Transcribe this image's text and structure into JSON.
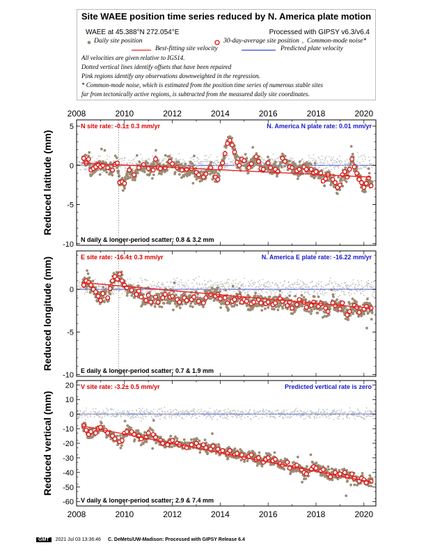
{
  "header": {
    "title": "Site WAEE position time series reduced by N. America plate motion",
    "station": "WAEE at 45.388°N 272.054°E",
    "processed": "Processed with GIPSY v6.3/v6.4",
    "legend": {
      "daily": "Daily site position",
      "avg": "30-day-average site position",
      "cm": "Common-mode noise*",
      "best": "Best-fitting site velocity",
      "pred": "Predicted plate velocity"
    },
    "notes": [
      "All velocities are given relative to IGS14.",
      "Dotted vertical lines identify offsets that have been repaired",
      "Pink regions identify any observations downweighted in the regression.",
      "* Common-mode noise, which is estimated from the position time series of numerous stable sites",
      "far from tectonically active regions, is subtracted from the measured daily site coordinates."
    ]
  },
  "colors": {
    "daily": "#9b8b74",
    "common_mode": "#c0c0c0",
    "average_stroke": "#e01010",
    "fit": "#ee2020",
    "plate": "#3344dd",
    "rate_text": "#dd0000",
    "plate_text": "#1a1acc"
  },
  "chart_data": [
    {
      "type": "scatter",
      "component": "N",
      "ylabel": "Reduced latitude (mm)",
      "xlim": [
        2008,
        2020.5
      ],
      "ylim": [
        -10.2,
        5.8
      ],
      "yticks": [
        5,
        0,
        -5,
        -10
      ],
      "xticks": [
        2008,
        2010,
        2012,
        2014,
        2016,
        2018,
        2020
      ],
      "x_tick_labels_top": [
        "2008",
        "2010",
        "2012",
        "2014",
        "2016",
        "2018",
        "2020"
      ],
      "offset_lines": [
        2009.75
      ],
      "site_rate": "N site rate:  -0.1± 0.3 mm/yr",
      "plate_rate": "N. America N plate rate: 0.01 mm/yr",
      "scatter": "N daily & longer-period scatter:   0.8 &   3.2 mm",
      "fit_line": [
        [
          2008.2,
          0.3
        ],
        [
          2020.3,
          -1.5
        ]
      ],
      "plate_line": [
        [
          2008,
          0.0
        ],
        [
          2020.5,
          0.0
        ]
      ],
      "averages": [
        [
          2008.3,
          0.9
        ],
        [
          2008.4,
          0.3
        ],
        [
          2008.5,
          0.8
        ],
        [
          2008.6,
          -0.6
        ],
        [
          2008.7,
          -0.4
        ],
        [
          2008.8,
          -0.2
        ],
        [
          2008.9,
          0.1
        ],
        [
          2009.0,
          -0.2
        ],
        [
          2009.1,
          0.0
        ],
        [
          2009.3,
          -0.3
        ],
        [
          2009.5,
          -0.6
        ],
        [
          2009.6,
          0.1
        ],
        [
          2009.7,
          0.3
        ],
        [
          2009.8,
          -2.2
        ],
        [
          2009.9,
          -2.1
        ],
        [
          2010.0,
          -2.3
        ],
        [
          2010.2,
          -0.6
        ],
        [
          2010.4,
          -1.2
        ],
        [
          2010.6,
          -0.3
        ],
        [
          2010.8,
          0.1
        ],
        [
          2011.0,
          -0.4
        ],
        [
          2011.2,
          -0.6
        ],
        [
          2011.3,
          0.8
        ],
        [
          2011.4,
          -0.2
        ],
        [
          2011.5,
          -0.4
        ],
        [
          2011.7,
          -0.3
        ],
        [
          2011.9,
          0.5
        ],
        [
          2012.0,
          0.2
        ],
        [
          2012.2,
          -0.3
        ],
        [
          2012.4,
          -0.6
        ],
        [
          2012.6,
          -0.5
        ],
        [
          2012.8,
          -0.4
        ],
        [
          2013.0,
          -0.9
        ],
        [
          2013.1,
          -1.2
        ],
        [
          2013.3,
          -1.5
        ],
        [
          2013.4,
          -1.1
        ],
        [
          2013.6,
          -0.3
        ],
        [
          2013.8,
          -1.5
        ],
        [
          2013.9,
          -1.8
        ],
        [
          2014.0,
          -0.3
        ],
        [
          2014.1,
          0.3
        ],
        [
          2014.2,
          1.5
        ],
        [
          2014.3,
          2.8
        ],
        [
          2014.4,
          3.2
        ],
        [
          2014.5,
          2.6
        ],
        [
          2014.6,
          1.7
        ],
        [
          2014.7,
          0.4
        ],
        [
          2014.8,
          0.0
        ],
        [
          2014.9,
          0.8
        ],
        [
          2015.0,
          0.6
        ],
        [
          2015.2,
          -0.3
        ],
        [
          2015.3,
          0.2
        ],
        [
          2015.5,
          1.1
        ],
        [
          2015.6,
          0.5
        ],
        [
          2015.7,
          -0.4
        ],
        [
          2015.8,
          -0.5
        ],
        [
          2016.0,
          0.3
        ],
        [
          2016.1,
          -0.3
        ],
        [
          2016.3,
          -0.5
        ],
        [
          2016.4,
          -0.8
        ],
        [
          2016.6,
          0.9
        ],
        [
          2016.7,
          0.5
        ],
        [
          2016.9,
          -0.2
        ],
        [
          2017.0,
          -0.3
        ],
        [
          2017.2,
          -0.7
        ],
        [
          2017.3,
          -0.5
        ],
        [
          2017.5,
          -0.2
        ],
        [
          2017.6,
          -0.5
        ],
        [
          2017.8,
          -0.5
        ],
        [
          2017.9,
          -1.0
        ],
        [
          2018.0,
          -0.8
        ],
        [
          2018.2,
          -1.0
        ],
        [
          2018.3,
          -2.0
        ],
        [
          2018.4,
          -1.7
        ],
        [
          2018.5,
          -1.2
        ],
        [
          2018.7,
          -1.8
        ],
        [
          2018.8,
          -2.2
        ],
        [
          2018.9,
          -2.8
        ],
        [
          2019.0,
          -2.5
        ],
        [
          2019.1,
          -1.2
        ],
        [
          2019.2,
          -0.8
        ],
        [
          2019.3,
          -1.5
        ],
        [
          2019.4,
          -0.5
        ],
        [
          2019.5,
          0.8
        ],
        [
          2019.6,
          -0.2
        ],
        [
          2019.7,
          -1.0
        ],
        [
          2019.8,
          -1.8
        ],
        [
          2019.9,
          -2.2
        ],
        [
          2020.0,
          -2.8
        ],
        [
          2020.1,
          -2.3
        ],
        [
          2020.2,
          -1.6
        ],
        [
          2020.3,
          -2.6
        ]
      ]
    },
    {
      "type": "scatter",
      "component": "E",
      "ylabel": "Reduced longitude (mm)",
      "xlim": [
        2008,
        2020.5
      ],
      "ylim": [
        -10.2,
        4.5
      ],
      "yticks": [
        0,
        -5,
        -10
      ],
      "xticks": [
        2008,
        2010,
        2012,
        2014,
        2016,
        2018,
        2020
      ],
      "offset_lines": [
        2009.75
      ],
      "site_rate": "E site rate: -16.4± 0.3 mm/yr",
      "plate_rate": "N. America E plate rate: -16.22 mm/yr",
      "scatter": "E daily & longer-period scatter:   0.7 &   1.9 mm",
      "fit_line": [
        [
          2008.2,
          0.8
        ],
        [
          2020.3,
          -2.2
        ]
      ],
      "plate_line": [
        [
          2008,
          0.0
        ],
        [
          2020.5,
          0.0
        ]
      ],
      "averages": [
        [
          2008.3,
          0.5
        ],
        [
          2008.4,
          1.0
        ],
        [
          2008.5,
          0.8
        ],
        [
          2008.6,
          0.5
        ],
        [
          2008.7,
          0.0
        ],
        [
          2008.8,
          -0.3
        ],
        [
          2008.9,
          -0.8
        ],
        [
          2009.0,
          -1.3
        ],
        [
          2009.1,
          -0.5
        ],
        [
          2009.3,
          -1.0
        ],
        [
          2009.4,
          0.1
        ],
        [
          2009.5,
          1.0
        ],
        [
          2009.6,
          1.5
        ],
        [
          2009.7,
          1.2
        ],
        [
          2009.8,
          1.8
        ],
        [
          2009.9,
          1.0
        ],
        [
          2010.0,
          0.5
        ],
        [
          2010.1,
          0.2
        ],
        [
          2010.3,
          -0.1
        ],
        [
          2010.5,
          -0.6
        ],
        [
          2010.6,
          -0.2
        ],
        [
          2010.7,
          -0.9
        ],
        [
          2010.9,
          -1.3
        ],
        [
          2011.0,
          -0.7
        ],
        [
          2011.1,
          -1.5
        ],
        [
          2011.3,
          -0.9
        ],
        [
          2011.4,
          -1.5
        ],
        [
          2011.6,
          -1.0
        ],
        [
          2011.7,
          -0.6
        ],
        [
          2011.9,
          -0.9
        ],
        [
          2012.0,
          -0.8
        ],
        [
          2012.2,
          -1.2
        ],
        [
          2012.3,
          -1.5
        ],
        [
          2012.5,
          -1.0
        ],
        [
          2012.6,
          -1.3
        ],
        [
          2012.8,
          -1.2
        ],
        [
          2012.9,
          -0.9
        ],
        [
          2013.1,
          -1.4
        ],
        [
          2013.3,
          -1.6
        ],
        [
          2013.4,
          -1.0
        ],
        [
          2013.6,
          -0.6
        ],
        [
          2013.8,
          -0.8
        ],
        [
          2013.9,
          -0.6
        ],
        [
          2014.0,
          -1.1
        ],
        [
          2014.2,
          -1.0
        ],
        [
          2014.3,
          -1.6
        ],
        [
          2014.5,
          -1.4
        ],
        [
          2014.6,
          -1.2
        ],
        [
          2014.8,
          -0.8
        ],
        [
          2014.9,
          -1.5
        ],
        [
          2015.0,
          -1.2
        ],
        [
          2015.1,
          -1.4
        ],
        [
          2015.3,
          -1.7
        ],
        [
          2015.4,
          -1.5
        ],
        [
          2015.6,
          -1.2
        ],
        [
          2015.7,
          -1.6
        ],
        [
          2015.9,
          -1.7
        ],
        [
          2016.0,
          -1.5
        ],
        [
          2016.2,
          -1.8
        ],
        [
          2016.3,
          -1.6
        ],
        [
          2016.5,
          -1.1
        ],
        [
          2016.6,
          -1.4
        ],
        [
          2016.8,
          -1.9
        ],
        [
          2016.9,
          -1.5
        ],
        [
          2017.0,
          -2.2
        ],
        [
          2017.2,
          -1.8
        ],
        [
          2017.3,
          -1.2
        ],
        [
          2017.5,
          -1.5
        ],
        [
          2017.6,
          -2.1
        ],
        [
          2017.8,
          -1.9
        ],
        [
          2017.9,
          -1.5
        ],
        [
          2018.1,
          -2.0
        ],
        [
          2018.2,
          -1.7
        ],
        [
          2018.4,
          -2.2
        ],
        [
          2018.5,
          -2.6
        ],
        [
          2018.7,
          -1.6
        ],
        [
          2018.8,
          -1.9
        ],
        [
          2019.0,
          -2.3
        ],
        [
          2019.1,
          -1.6
        ],
        [
          2019.3,
          -3.0
        ],
        [
          2019.4,
          -2.6
        ],
        [
          2019.6,
          -1.9
        ],
        [
          2019.7,
          -2.1
        ],
        [
          2019.8,
          -2.7
        ],
        [
          2020.0,
          -2.3
        ],
        [
          2020.1,
          -2.0
        ],
        [
          2020.3,
          -2.2
        ]
      ]
    },
    {
      "type": "scatter",
      "component": "V",
      "ylabel": "Reduced vertical (mm)",
      "xlim": [
        2008,
        2020.5
      ],
      "ylim": [
        -63,
        23
      ],
      "yticks": [
        20,
        10,
        0,
        -10,
        -20,
        -30,
        -40,
        -50,
        -60
      ],
      "xticks": [
        2008,
        2010,
        2012,
        2014,
        2016,
        2018,
        2020
      ],
      "x_tick_labels_bottom": [
        "2008",
        "2010",
        "2012",
        "2014",
        "2016",
        "2018",
        "2020"
      ],
      "site_rate": "V site rate:  -3.2± 0.5 mm/yr",
      "plate_rate": "Predicted vertical rate is zero",
      "scatter": "V daily & longer-period scatter:   2.9 &   7.4 mm",
      "fit_line": [
        [
          2008.2,
          -8.0
        ],
        [
          2020.3,
          -46.5
        ]
      ],
      "plate_line": [
        [
          2008,
          0.0
        ],
        [
          2020.5,
          0.0
        ]
      ],
      "averages": [
        [
          2008.3,
          -8
        ],
        [
          2008.4,
          -11
        ],
        [
          2008.5,
          -14
        ],
        [
          2008.6,
          -12
        ],
        [
          2008.8,
          -13
        ],
        [
          2008.9,
          -10
        ],
        [
          2009.0,
          -9
        ],
        [
          2009.2,
          -11
        ],
        [
          2009.3,
          -13
        ],
        [
          2009.5,
          -15
        ],
        [
          2009.6,
          -17
        ],
        [
          2009.8,
          -19
        ],
        [
          2009.9,
          -18
        ],
        [
          2010.0,
          -13
        ],
        [
          2010.1,
          -12
        ],
        [
          2010.3,
          -12
        ],
        [
          2010.4,
          -14
        ],
        [
          2010.6,
          -15
        ],
        [
          2010.7,
          -17
        ],
        [
          2010.9,
          -16
        ],
        [
          2011.0,
          -13
        ],
        [
          2011.2,
          -14
        ],
        [
          2011.3,
          -16
        ],
        [
          2011.5,
          -18
        ],
        [
          2011.6,
          -20
        ],
        [
          2011.8,
          -21
        ],
        [
          2011.9,
          -19
        ],
        [
          2012.0,
          -18
        ],
        [
          2012.2,
          -20
        ],
        [
          2012.3,
          -21
        ],
        [
          2012.5,
          -22
        ],
        [
          2012.6,
          -23
        ],
        [
          2012.8,
          -21
        ],
        [
          2013.0,
          -20
        ],
        [
          2013.1,
          -22
        ],
        [
          2013.3,
          -21
        ],
        [
          2013.4,
          -23
        ],
        [
          2013.6,
          -24
        ],
        [
          2013.7,
          -22
        ],
        [
          2013.9,
          -24
        ],
        [
          2014.0,
          -26
        ],
        [
          2014.1,
          -25
        ],
        [
          2014.3,
          -27
        ],
        [
          2014.4,
          -25
        ],
        [
          2014.6,
          -28
        ],
        [
          2014.7,
          -27
        ],
        [
          2014.9,
          -28
        ],
        [
          2015.0,
          -30
        ],
        [
          2015.2,
          -29
        ],
        [
          2015.3,
          -28
        ],
        [
          2015.5,
          -31
        ],
        [
          2015.6,
          -30
        ],
        [
          2015.8,
          -33
        ],
        [
          2015.9,
          -31
        ],
        [
          2016.0,
          -30
        ],
        [
          2016.2,
          -32
        ],
        [
          2016.3,
          -31
        ],
        [
          2016.5,
          -34
        ],
        [
          2016.6,
          -35
        ],
        [
          2016.8,
          -33
        ],
        [
          2016.9,
          -37
        ],
        [
          2017.1,
          -36
        ],
        [
          2017.2,
          -35
        ],
        [
          2017.4,
          -38
        ],
        [
          2017.5,
          -40
        ],
        [
          2017.6,
          -41
        ],
        [
          2017.8,
          -38
        ],
        [
          2017.9,
          -36
        ],
        [
          2018.0,
          -37
        ],
        [
          2018.2,
          -39
        ],
        [
          2018.3,
          -38
        ],
        [
          2018.5,
          -41
        ],
        [
          2018.6,
          -43
        ],
        [
          2018.8,
          -40
        ],
        [
          2018.9,
          -42
        ],
        [
          2019.0,
          -41
        ],
        [
          2019.2,
          -40
        ],
        [
          2019.3,
          -43
        ],
        [
          2019.5,
          -41
        ],
        [
          2019.6,
          -44
        ],
        [
          2019.8,
          -46
        ],
        [
          2019.9,
          -44
        ],
        [
          2020.0,
          -45
        ],
        [
          2020.1,
          -47
        ],
        [
          2020.3,
          -46
        ]
      ]
    }
  ],
  "footer": {
    "logo": "GMT",
    "date": "2021 Jul 03 13:36:46",
    "credit": "C. DeMets/UW-Madison: Processed with GIPSY Release 6.4"
  }
}
